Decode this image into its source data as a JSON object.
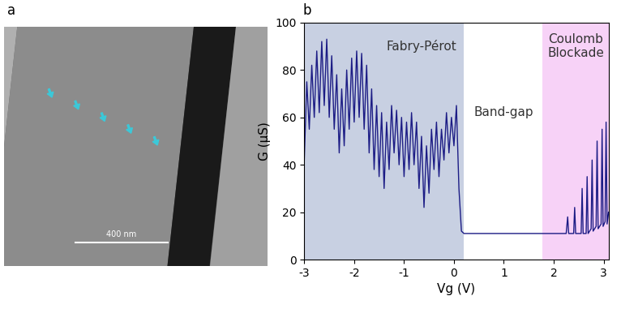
{
  "image": {
    "label": "a",
    "scale_bar": "400 nm"
  },
  "chart_data": {
    "type": "line",
    "label": "b",
    "xlabel": "Vg (V)",
    "ylabel": "G (µS)",
    "x": [
      -3.0,
      -2.95,
      -2.9,
      -2.85,
      -2.8,
      -2.75,
      -2.7,
      -2.65,
      -2.6,
      -2.55,
      -2.5,
      -2.45,
      -2.4,
      -2.35,
      -2.3,
      -2.25,
      -2.2,
      -2.15,
      -2.1,
      -2.05,
      -2.0,
      -1.95,
      -1.9,
      -1.85,
      -1.8,
      -1.75,
      -1.7,
      -1.65,
      -1.6,
      -1.55,
      -1.5,
      -1.45,
      -1.4,
      -1.35,
      -1.3,
      -1.25,
      -1.2,
      -1.15,
      -1.1,
      -1.05,
      -1.0,
      -0.95,
      -0.9,
      -0.85,
      -0.8,
      -0.75,
      -0.7,
      -0.65,
      -0.6,
      -0.55,
      -0.5,
      -0.45,
      -0.4,
      -0.35,
      -0.3,
      -0.25,
      -0.2,
      -0.15,
      -0.1,
      -0.05,
      0.0,
      0.05,
      0.1,
      0.15,
      0.2,
      1.0,
      2.0,
      2.25,
      2.28,
      2.3,
      2.4,
      2.42,
      2.44,
      2.55,
      2.57,
      2.59,
      2.65,
      2.67,
      2.69,
      2.75,
      2.77,
      2.79,
      2.85,
      2.87,
      2.89,
      2.95,
      2.97,
      2.99,
      3.03,
      3.05,
      3.07,
      3.1
    ],
    "values": [
      42,
      75,
      55,
      82,
      60,
      88,
      62,
      92,
      65,
      93,
      60,
      86,
      55,
      78,
      45,
      72,
      48,
      80,
      55,
      85,
      58,
      88,
      60,
      87,
      55,
      82,
      45,
      72,
      38,
      65,
      35,
      62,
      30,
      58,
      38,
      65,
      45,
      63,
      40,
      60,
      35,
      58,
      38,
      62,
      40,
      58,
      30,
      52,
      22,
      48,
      28,
      55,
      38,
      58,
      35,
      55,
      42,
      62,
      45,
      60,
      48,
      65,
      30,
      12,
      11,
      11,
      11,
      11,
      18,
      11,
      11,
      22,
      11,
      11,
      30,
      11,
      11,
      35,
      11,
      13,
      42,
      12,
      14,
      50,
      13,
      15,
      55,
      14,
      16,
      58,
      15,
      20
    ],
    "color": "#1c1c85",
    "xlim": [
      -3,
      3.1
    ],
    "xticks": [
      -3,
      -2,
      -1,
      0,
      1,
      2,
      3
    ],
    "ylim": [
      0,
      100
    ],
    "yticks": [
      0,
      20,
      40,
      60,
      80,
      100
    ],
    "regions": [
      {
        "label": "Fabry-Pérot",
        "start": -3,
        "end": 0.2,
        "color": "#c8d0e2"
      },
      {
        "label": "Band-gap",
        "start": 0.2,
        "end": 1.78,
        "color": "#ffffff"
      },
      {
        "label": "Coulomb\nBlockade",
        "start": 1.78,
        "end": 3.1,
        "color": "#f7d2f7"
      }
    ]
  }
}
